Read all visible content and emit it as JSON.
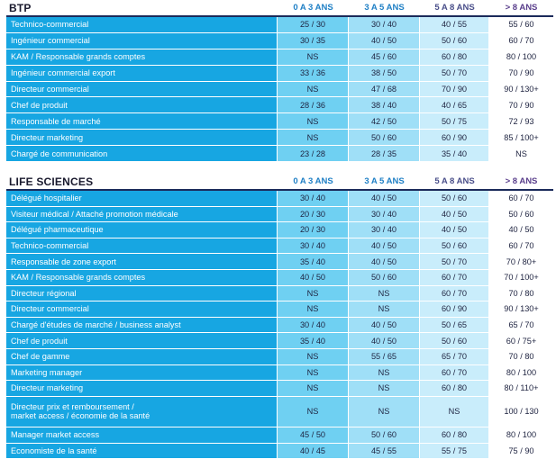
{
  "tables": [
    {
      "title": "BTP",
      "headers": [
        "0 A 3 ANS",
        "3 A 5 ANS",
        "5 A 8 ANS",
        "> 8 ANS"
      ],
      "rows": [
        {
          "label": "Technico-commercial",
          "v": [
            "25 / 30",
            "30 / 40",
            "40 / 55",
            "55 / 60"
          ]
        },
        {
          "label": "Ingénieur commercial",
          "v": [
            "30 / 35",
            "40 / 50",
            "50 / 60",
            "60 / 70"
          ]
        },
        {
          "label": "KAM / Responsable grands comptes",
          "v": [
            "NS",
            "45 / 60",
            "60 / 80",
            "80 / 100"
          ]
        },
        {
          "label": "Ingénieur commercial export",
          "v": [
            "33 / 36",
            "38 / 50",
            "50 / 70",
            "70 / 90"
          ]
        },
        {
          "label": "Directeur commercial",
          "v": [
            "NS",
            "47 / 68",
            "70 / 90",
            "90 / 130+"
          ]
        },
        {
          "label": "Chef de produit",
          "v": [
            "28 / 36",
            "38 / 40",
            "40 / 65",
            "70 / 90"
          ]
        },
        {
          "label": "Responsable de marché",
          "v": [
            "NS",
            "42 / 50",
            "50 / 75",
            "72 / 93"
          ]
        },
        {
          "label": "Directeur marketing",
          "v": [
            "NS",
            "50 / 60",
            "60 / 90",
            "85 / 100+"
          ]
        },
        {
          "label": "Chargé de communication",
          "v": [
            "23 / 28",
            "28 / 35",
            "35 / 40",
            "NS"
          ]
        }
      ]
    },
    {
      "title": "LIFE SCIENCES",
      "headers": [
        "0 A 3 ANS",
        "3 A 5 ANS",
        "5 A 8 ANS",
        "> 8 ANS"
      ],
      "rows": [
        {
          "label": "Délégué hospitalier",
          "v": [
            "30 / 40",
            "40 / 50",
            "50 / 60",
            "60 / 70"
          ]
        },
        {
          "label": "Visiteur médical / Attaché promotion médicale",
          "v": [
            "20 / 30",
            "30 / 40",
            "40 / 50",
            "50 / 60"
          ]
        },
        {
          "label": "Délégué pharmaceutique",
          "v": [
            "20 / 30",
            "30 / 40",
            "40 / 50",
            "40 / 50"
          ]
        },
        {
          "label": "Technico-commercial",
          "v": [
            "30 / 40",
            "40 / 50",
            "50 / 60",
            "60 / 70"
          ]
        },
        {
          "label": "Responsable de zone export",
          "v": [
            "35 / 40",
            "40 / 50",
            "50 / 70",
            "70 / 80+"
          ]
        },
        {
          "label": "KAM / Responsable grands comptes",
          "v": [
            "40 / 50",
            "50 / 60",
            "60 / 70",
            "70 / 100+"
          ]
        },
        {
          "label": "Directeur régional",
          "v": [
            "NS",
            "NS",
            "60 / 70",
            "70 / 80"
          ]
        },
        {
          "label": "Directeur commercial",
          "v": [
            "NS",
            "NS",
            "60 / 90",
            "90 / 130+"
          ]
        },
        {
          "label": "Chargé d'études de marché / business analyst",
          "v": [
            "30 / 40",
            "40 / 50",
            "50 / 65",
            "65 / 70"
          ]
        },
        {
          "label": "Chef de produit",
          "v": [
            "35 / 40",
            "40 / 50",
            "50 / 60",
            "60 / 75+"
          ]
        },
        {
          "label": "Chef de gamme",
          "v": [
            "NS",
            "55 / 65",
            "65 / 70",
            "70 / 80"
          ]
        },
        {
          "label": "Marketing manager",
          "v": [
            "NS",
            "NS",
            "60 / 70",
            "80 / 100"
          ]
        },
        {
          "label": "Directeur marketing",
          "v": [
            "NS",
            "NS",
            "60 / 80",
            "80 / 110+"
          ]
        },
        {
          "label": "Directeur prix et remboursement / market access / économie de la santé",
          "v": [
            "NS",
            "NS",
            "NS",
            "100 / 130"
          ]
        },
        {
          "label": "Manager market access",
          "v": [
            "45 / 50",
            "50 / 60",
            "60 / 80",
            "80 / 100"
          ]
        },
        {
          "label": "Economiste de la santé",
          "v": [
            "40 / 45",
            "45 / 55",
            "55 / 75",
            "75 / 90"
          ]
        }
      ]
    }
  ]
}
